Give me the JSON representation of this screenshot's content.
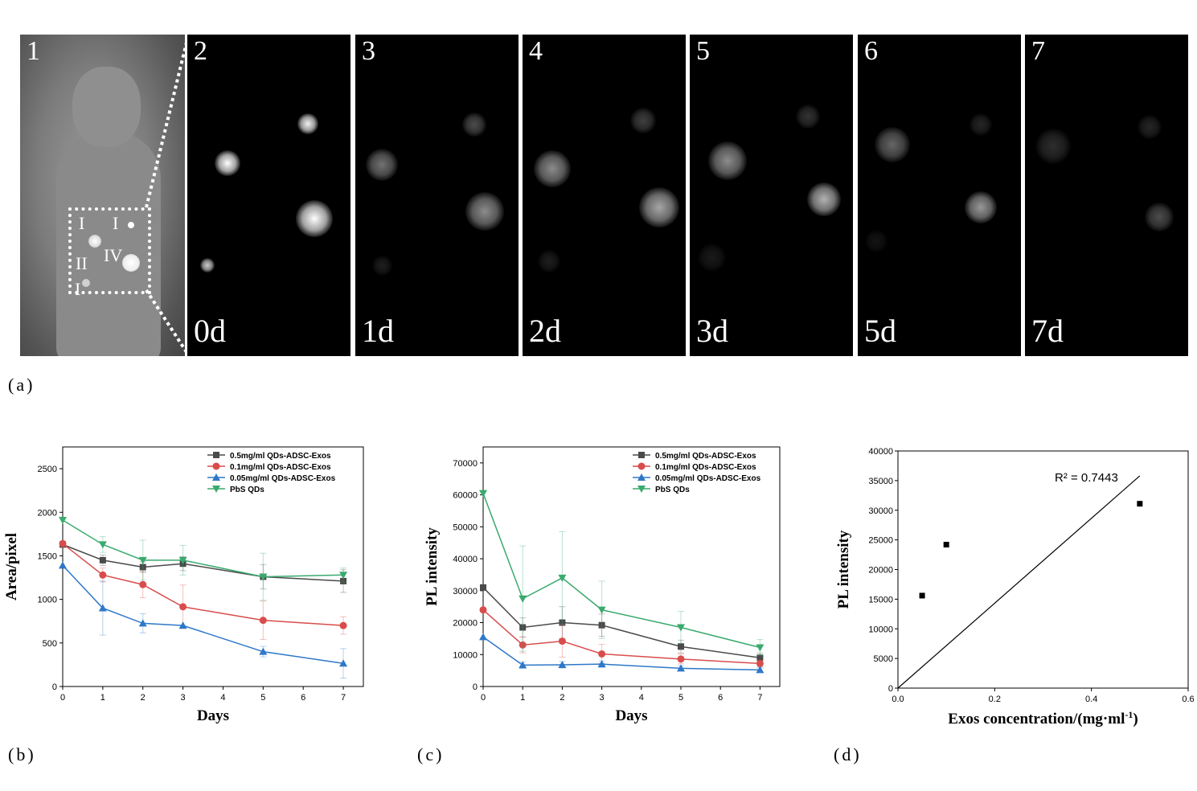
{
  "panel_a": {
    "label": "(a)",
    "photo_number": "1",
    "roman_marks": [
      "I",
      "I",
      "II",
      "IV",
      "I"
    ],
    "frames": [
      {
        "number": "2",
        "day": "0d"
      },
      {
        "number": "3",
        "day": "1d"
      },
      {
        "number": "4",
        "day": "2d"
      },
      {
        "number": "5",
        "day": "3d"
      },
      {
        "number": "6",
        "day": "5d"
      },
      {
        "number": "7",
        "day": "7d"
      }
    ]
  },
  "panel_labels": {
    "b": "(b)",
    "c": "(c)",
    "d": "(d)"
  },
  "chart_data": [
    {
      "type": "line",
      "xlabel": "Days",
      "ylabel": "Area/pixel",
      "xlim": [
        0,
        7.5
      ],
      "ylim": [
        0,
        2750
      ],
      "xticks": [
        0,
        1,
        2,
        3,
        4,
        5,
        6,
        7
      ],
      "yticks": [
        0,
        500,
        1000,
        1500,
        2000,
        2500
      ],
      "legend_position": "top-right",
      "x": [
        0,
        1,
        2,
        3,
        5,
        7
      ],
      "series": [
        {
          "name": "0.5mg/ml QDs-ADSC-Exos",
          "color": "#4a4a4a",
          "marker": "square",
          "values": [
            1630,
            1450,
            1370,
            1410,
            1260,
            1210
          ],
          "errors": [
            0,
            60,
            60,
            80,
            140,
            130
          ]
        },
        {
          "name": "0.1mg/ml QDs-ADSC-Exos",
          "color": "#d94c4c",
          "marker": "circle",
          "values": [
            1640,
            1280,
            1170,
            915,
            760,
            700
          ],
          "errors": [
            0,
            80,
            150,
            250,
            220,
            100
          ]
        },
        {
          "name": "0.05mg/ml QDs-ADSC-Exos",
          "color": "#2e78c8",
          "marker": "triangle-up",
          "values": [
            1390,
            900,
            725,
            700,
            400,
            265
          ],
          "errors": [
            0,
            310,
            110,
            0,
            60,
            170
          ]
        },
        {
          "name": "PbS QDs",
          "color": "#3aaa6e",
          "marker": "triangle-down",
          "values": [
            1910,
            1630,
            1450,
            1450,
            1260,
            1280
          ],
          "errors": [
            0,
            90,
            230,
            170,
            270,
            80
          ]
        }
      ]
    },
    {
      "type": "line",
      "xlabel": "Days",
      "ylabel": "PL intensity",
      "xlim": [
        0,
        7.5
      ],
      "ylim": [
        0,
        75000
      ],
      "xticks": [
        0,
        1,
        2,
        3,
        4,
        5,
        6,
        7
      ],
      "yticks": [
        0,
        10000,
        20000,
        30000,
        40000,
        50000,
        60000,
        70000
      ],
      "legend_position": "top-right",
      "x": [
        0,
        1,
        2,
        3,
        5,
        7
      ],
      "series": [
        {
          "name": "0.5mg/ml QDs-ADSC-Exos",
          "color": "#4a4a4a",
          "marker": "square",
          "values": [
            31000,
            18500,
            20000,
            19200,
            12500,
            9000
          ],
          "errors": [
            0,
            3000,
            5000,
            3500,
            2000,
            1500
          ]
        },
        {
          "name": "0.1mg/ml QDs-ADSC-Exos",
          "color": "#d94c4c",
          "marker": "circle",
          "values": [
            24000,
            13000,
            14200,
            10200,
            8600,
            7200
          ],
          "errors": [
            0,
            2500,
            5000,
            3000,
            1500,
            1000
          ]
        },
        {
          "name": "0.05mg/ml QDs-ADSC-Exos",
          "color": "#2e78c8",
          "marker": "triangle-up",
          "values": [
            15500,
            6700,
            6800,
            7000,
            5700,
            5200
          ],
          "errors": [
            0,
            1000,
            1000,
            1000,
            800,
            700
          ]
        },
        {
          "name": "PbS QDs",
          "color": "#3aaa6e",
          "marker": "triangle-down",
          "values": [
            60500,
            27500,
            34000,
            24000,
            18500,
            12200
          ],
          "errors": [
            0,
            16500,
            14500,
            9000,
            5000,
            2500
          ]
        }
      ]
    },
    {
      "type": "scatter",
      "xlabel": "Exos concentration/(mg·ml",
      "xlabel_sup": "-1",
      "xlabel_end": ")",
      "ylabel": "PL intensity",
      "xlim": [
        0,
        0.6
      ],
      "ylim": [
        0,
        40000
      ],
      "xticks": [
        "0.0",
        "0.2",
        "0.4",
        "0.6"
      ],
      "yticks": [
        0,
        5000,
        10000,
        15000,
        20000,
        25000,
        30000,
        35000,
        40000
      ],
      "points": [
        {
          "x": 0.05,
          "y": 15600
        },
        {
          "x": 0.1,
          "y": 24200
        },
        {
          "x": 0.5,
          "y": 31100
        }
      ],
      "trendline": {
        "x": [
          0,
          0.5
        ],
        "y": [
          0,
          35800
        ]
      },
      "annotation": "R² = 0.7443"
    }
  ]
}
